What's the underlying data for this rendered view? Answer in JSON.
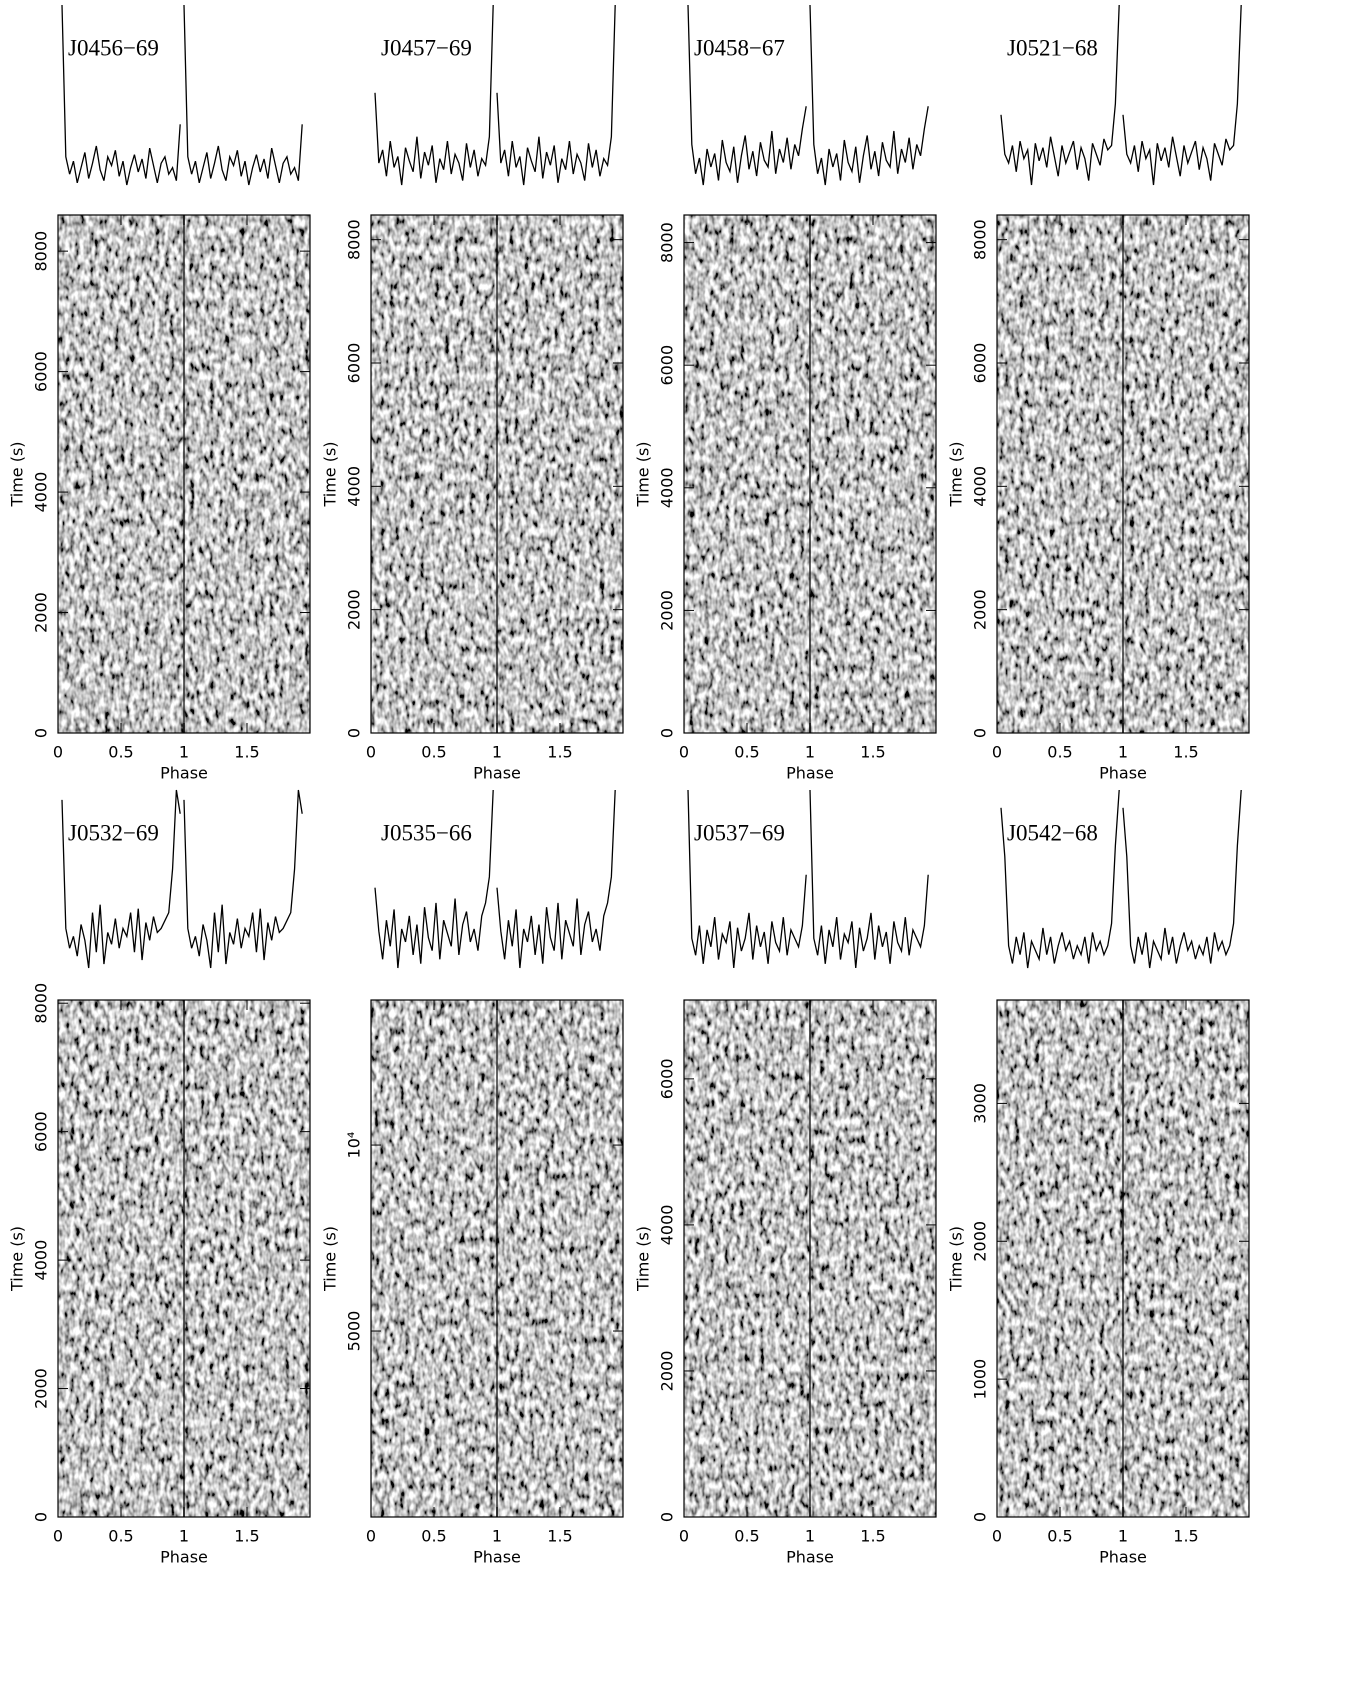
{
  "chart_data": [
    {
      "type": "line",
      "title": "J0456−69",
      "xlabel": "Phase",
      "ylabel": "Time (s)",
      "xlim": [
        0,
        2
      ],
      "xticks": [
        0,
        0.5,
        1,
        1.5
      ],
      "ylim": [
        0,
        8600
      ],
      "yticks": [
        0,
        2000,
        4000,
        6000,
        8000
      ],
      "color": "#000000",
      "profile": [
        100,
        30,
        22,
        28,
        18,
        25,
        32,
        20,
        27,
        35,
        24,
        19,
        30,
        26,
        33,
        21,
        28,
        17,
        25,
        31,
        23,
        29,
        20,
        34,
        26,
        18,
        27,
        30,
        22,
        25,
        19,
        45
      ]
    },
    {
      "type": "line",
      "title": "J0457−69",
      "xlabel": "Phase",
      "ylabel": "Time (s)",
      "xlim": [
        0,
        2
      ],
      "xticks": [
        0,
        0.5,
        1,
        1.5
      ],
      "ylim": [
        0,
        8400
      ],
      "yticks": [
        0,
        2000,
        4000,
        6000,
        8000
      ],
      "color": "#000000",
      "profile": [
        60,
        28,
        34,
        22,
        38,
        26,
        31,
        18,
        35,
        29,
        24,
        40,
        21,
        33,
        27,
        36,
        19,
        30,
        25,
        38,
        23,
        32,
        28,
        20,
        37,
        26,
        34,
        22,
        30,
        27,
        40,
        100
      ]
    },
    {
      "type": "line",
      "title": "J0458−67",
      "xlabel": "Phase",
      "ylabel": "Time (s)",
      "xlim": [
        0,
        2
      ],
      "xticks": [
        0,
        0.5,
        1,
        1.5
      ],
      "ylim": [
        0,
        8450
      ],
      "yticks": [
        0,
        2000,
        4000,
        6000,
        8000
      ],
      "color": "#000000",
      "profile": [
        100,
        38,
        25,
        32,
        20,
        36,
        28,
        34,
        22,
        40,
        30,
        26,
        37,
        21,
        33,
        42,
        27,
        35,
        24,
        39,
        31,
        28,
        44,
        25,
        36,
        30,
        41,
        27,
        38,
        33,
        45,
        55
      ]
    },
    {
      "type": "line",
      "title": "J0521−68",
      "xlabel": "Phase",
      "ylabel": "Time (s)",
      "xlim": [
        0,
        2
      ],
      "xticks": [
        0,
        0.5,
        1,
        1.5
      ],
      "ylim": [
        0,
        8400
      ],
      "yticks": [
        0,
        2000,
        4000,
        6000,
        8000
      ],
      "color": "#000000",
      "profile": [
        50,
        32,
        28,
        36,
        24,
        38,
        30,
        34,
        18,
        37,
        29,
        35,
        26,
        40,
        31,
        22,
        36,
        28,
        33,
        38,
        25,
        35,
        30,
        20,
        37,
        32,
        27,
        39,
        34,
        36,
        55,
        100
      ]
    },
    {
      "type": "line",
      "title": "J0532−69",
      "xlabel": "Phase",
      "ylabel": "Time (s)",
      "xlim": [
        0,
        2
      ],
      "xticks": [
        0,
        0.5,
        1,
        1.5
      ],
      "ylim": [
        0,
        8050
      ],
      "yticks": [
        0,
        2000,
        4000,
        6000,
        8000
      ],
      "color": "#000000",
      "profile": [
        95,
        30,
        20,
        26,
        16,
        32,
        24,
        10,
        38,
        18,
        42,
        12,
        28,
        22,
        35,
        20,
        30,
        26,
        38,
        18,
        40,
        14,
        33,
        24,
        36,
        28,
        30,
        34,
        38,
        60,
        100,
        88
      ]
    },
    {
      "type": "line",
      "title": "J0535−66",
      "xlabel": "Phase",
      "ylabel": "Time (s)",
      "xlim": [
        0,
        2
      ],
      "xticks": [
        0,
        0.5,
        1,
        1.5
      ],
      "ylim": [
        0,
        13900
      ],
      "yticks": [
        5000,
        {
          "value": 10000,
          "label": "10⁴"
        }
      ],
      "color": "#000000",
      "profile": [
        55,
        35,
        22,
        40,
        28,
        45,
        18,
        36,
        30,
        42,
        24,
        38,
        20,
        46,
        32,
        26,
        48,
        22,
        40,
        34,
        28,
        50,
        24,
        38,
        44,
        30,
        36,
        26,
        42,
        48,
        60,
        100
      ]
    },
    {
      "type": "line",
      "title": "J0537−69",
      "xlabel": "Phase",
      "ylabel": "Time (s)",
      "xlim": [
        0,
        2
      ],
      "xticks": [
        0,
        0.5,
        1,
        1.5
      ],
      "ylim": [
        0,
        7080
      ],
      "yticks": [
        0,
        2000,
        4000,
        6000
      ],
      "color": "#000000",
      "profile": [
        100,
        30,
        22,
        36,
        18,
        34,
        26,
        40,
        20,
        32,
        28,
        38,
        16,
        35,
        24,
        30,
        42,
        20,
        36,
        26,
        33,
        18,
        38,
        28,
        24,
        40,
        22,
        34,
        30,
        26,
        36,
        60
      ]
    },
    {
      "type": "line",
      "title": "J0542−68",
      "xlabel": "Phase",
      "ylabel": "Time (s)",
      "xlim": [
        0,
        2
      ],
      "xticks": [
        0,
        0.5,
        1,
        1.5
      ],
      "ylim": [
        0,
        3750
      ],
      "yticks": [
        0,
        1000,
        2000,
        3000
      ],
      "color": "#000000",
      "profile": [
        92,
        70,
        30,
        22,
        34,
        26,
        36,
        20,
        32,
        28,
        24,
        38,
        26,
        34,
        22,
        30,
        36,
        28,
        32,
        24,
        30,
        26,
        34,
        22,
        36,
        28,
        32,
        26,
        30,
        40,
        75,
        100
      ]
    }
  ]
}
